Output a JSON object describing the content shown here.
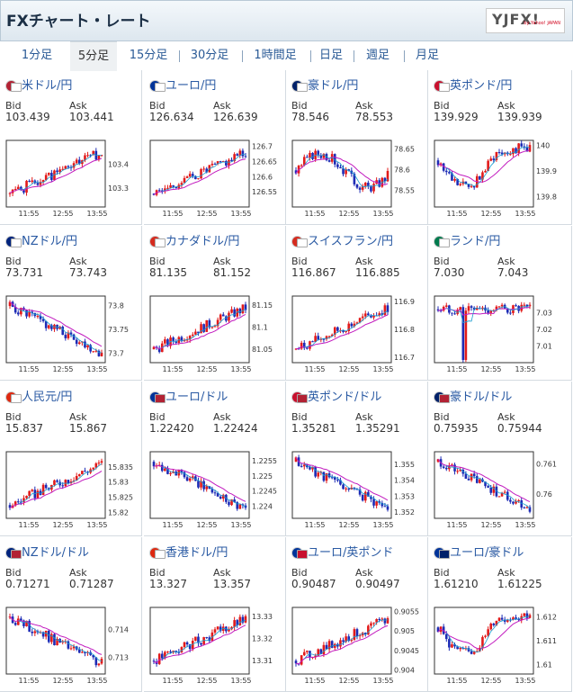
{
  "header": {
    "title": "FXチャート・レート",
    "logo_text": "YJFX!",
    "logo_sub": "by Yahoo! JAPAN"
  },
  "tabs": [
    {
      "label": "1分足",
      "selected": false
    },
    {
      "label": "5分足",
      "selected": true
    },
    {
      "label": "15分足",
      "selected": false
    },
    {
      "label": "30分足",
      "selected": false
    },
    {
      "label": "1時間足",
      "selected": false
    },
    {
      "label": "日足",
      "selected": false
    },
    {
      "label": "週足",
      "selected": false
    },
    {
      "label": "月足",
      "selected": false
    }
  ],
  "bid_label": "Bid",
  "ask_label": "Ask",
  "x_ticks": [
    "11:55",
    "12:55",
    "13:55"
  ],
  "colors": {
    "up": "#e21a1a",
    "down": "#1d2bb5",
    "ma1": "#c21bbf",
    "ma2": "#1a9dcf",
    "pair": "#2a5aa3"
  },
  "pairs": [
    {
      "name": "米ドル/円",
      "flag_a": "#b22234",
      "flag_b": "#ffffff",
      "bid": "103.439",
      "ask": "103.441",
      "y_ticks": [
        "103.4",
        "103.3"
      ],
      "chart": {
        "ylim": [
          103.22,
          103.5
        ],
        "trend": "up",
        "seed": 1
      }
    },
    {
      "name": "ユーロ/円",
      "flag_a": "#003399",
      "flag_b": "#ffffff",
      "bid": "126.634",
      "ask": "126.639",
      "y_ticks": [
        "126.7",
        "126.65",
        "126.6",
        "126.55"
      ],
      "chart": {
        "ylim": [
          126.5,
          126.72
        ],
        "trend": "up",
        "seed": 2
      }
    },
    {
      "name": "豪ドル/円",
      "flag_a": "#012169",
      "flag_b": "#ffffff",
      "bid": "78.546",
      "ask": "78.553",
      "y_ticks": [
        "78.65",
        "78.6",
        "78.55"
      ],
      "chart": {
        "ylim": [
          78.51,
          78.67
        ],
        "trend": "flat",
        "seed": 3
      }
    },
    {
      "name": "英ポンド/円",
      "flag_a": "#c8102e",
      "flag_b": "#ffffff",
      "bid": "139.929",
      "ask": "139.939",
      "y_ticks": [
        "140",
        "139.9",
        "139.8"
      ],
      "chart": {
        "ylim": [
          139.76,
          140.02
        ],
        "trend": "dip",
        "seed": 4
      }
    },
    {
      "name": "NZドル/円",
      "flag_a": "#00247d",
      "flag_b": "#ffffff",
      "bid": "73.731",
      "ask": "73.743",
      "y_ticks": [
        "73.8",
        "73.75",
        "73.7"
      ],
      "chart": {
        "ylim": [
          73.68,
          73.82
        ],
        "trend": "down",
        "seed": 5
      }
    },
    {
      "name": "カナダドル/円",
      "flag_a": "#d52b1e",
      "flag_b": "#ffffff",
      "bid": "81.135",
      "ask": "81.152",
      "y_ticks": [
        "81.15",
        "81.1",
        "81.05"
      ],
      "chart": {
        "ylim": [
          81.02,
          81.17
        ],
        "trend": "up",
        "seed": 6
      }
    },
    {
      "name": "スイスフラン/円",
      "flag_a": "#d52b1e",
      "flag_b": "#ffffff",
      "bid": "116.867",
      "ask": "116.885",
      "y_ticks": [
        "116.9",
        "116.8",
        "116.7"
      ],
      "chart": {
        "ylim": [
          116.68,
          116.92
        ],
        "trend": "up",
        "seed": 7
      }
    },
    {
      "name": "ランド/円",
      "flag_a": "#007a4d",
      "flag_b": "#ffffff",
      "bid": "7.030",
      "ask": "7.043",
      "y_ticks": [
        "7.03",
        "7.02",
        "7.01"
      ],
      "chart": {
        "ylim": [
          7.0,
          7.04
        ],
        "trend": "spike",
        "seed": 8
      }
    },
    {
      "name": "人民元/円",
      "flag_a": "#de2910",
      "flag_b": "#ffffff",
      "bid": "15.837",
      "ask": "15.867",
      "y_ticks": [
        "15.835",
        "15.83",
        "15.825",
        "15.82"
      ],
      "chart": {
        "ylim": [
          15.818,
          15.84
        ],
        "trend": "up",
        "seed": 9
      }
    },
    {
      "name": "ユーロ/ドル",
      "flag_a": "#003399",
      "flag_b": "#b22234",
      "bid": "1.22420",
      "ask": "1.22424",
      "y_ticks": [
        "1.2255",
        "1.225",
        "1.2245",
        "1.224"
      ],
      "chart": {
        "ylim": [
          1.2236,
          1.2258
        ],
        "trend": "down",
        "seed": 10
      }
    },
    {
      "name": "英ポンド/ドル",
      "flag_a": "#c8102e",
      "flag_b": "#b22234",
      "bid": "1.35281",
      "ask": "1.35291",
      "y_ticks": [
        "1.355",
        "1.354",
        "1.353",
        "1.352"
      ],
      "chart": {
        "ylim": [
          1.3516,
          1.3558
        ],
        "trend": "down",
        "seed": 11
      }
    },
    {
      "name": "豪ドル/ドル",
      "flag_a": "#012169",
      "flag_b": "#b22234",
      "bid": "0.75935",
      "ask": "0.75944",
      "y_ticks": [
        "0.761",
        "0.76"
      ],
      "chart": {
        "ylim": [
          0.7592,
          0.7614
        ],
        "trend": "down",
        "seed": 12
      }
    },
    {
      "name": "NZドル/ドル",
      "flag_a": "#00247d",
      "flag_b": "#b22234",
      "bid": "0.71271",
      "ask": "0.71287",
      "y_ticks": [
        "0.714",
        "0.713"
      ],
      "chart": {
        "ylim": [
          0.7124,
          0.7148
        ],
        "trend": "down",
        "seed": 13
      }
    },
    {
      "name": "香港ドル/円",
      "flag_a": "#de2910",
      "flag_b": "#ffffff",
      "bid": "13.327",
      "ask": "13.357",
      "y_ticks": [
        "13.33",
        "13.32",
        "13.31"
      ],
      "chart": {
        "ylim": [
          13.304,
          13.334
        ],
        "trend": "up",
        "seed": 14
      }
    },
    {
      "name": "ユーロ/英ポンド",
      "flag_a": "#003399",
      "flag_b": "#c8102e",
      "bid": "0.90487",
      "ask": "0.90497",
      "y_ticks": [
        "0.9055",
        "0.905",
        "0.9045",
        "0.904"
      ],
      "chart": {
        "ylim": [
          0.9039,
          0.9056
        ],
        "trend": "up",
        "seed": 15
      }
    },
    {
      "name": "ユーロ/豪ドル",
      "flag_a": "#003399",
      "flag_b": "#012169",
      "bid": "1.61210",
      "ask": "1.61225",
      "y_ticks": [
        "1.612",
        "1.611",
        "1.61"
      ],
      "chart": {
        "ylim": [
          1.6096,
          1.6124
        ],
        "trend": "dip",
        "seed": 16
      }
    }
  ]
}
